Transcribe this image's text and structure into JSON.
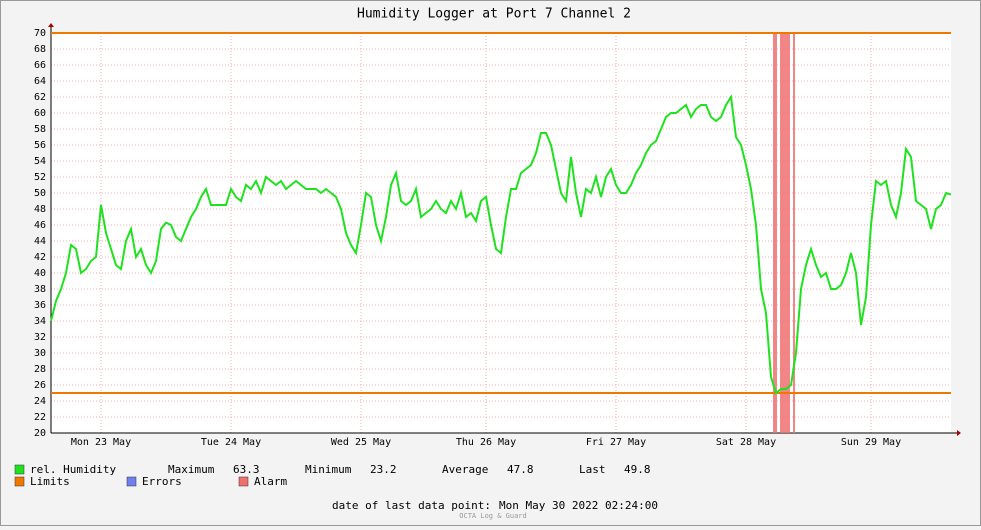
{
  "chart_data": {
    "type": "line",
    "title": "Humidity Logger at Port 7 Channel 2",
    "series": [
      {
        "name": "rel. Humidity",
        "color": "#1fe21f",
        "values": [
          34,
          36.5,
          38,
          40,
          43.5,
          43,
          40,
          40.5,
          41.5,
          42,
          48.5,
          45,
          43,
          41,
          40.5,
          44,
          45.5,
          42,
          43,
          41,
          40,
          41.5,
          45.5,
          46.3,
          46,
          44.5,
          44,
          45.5,
          47,
          48,
          49.5,
          50.5,
          48.5,
          48.5,
          48.5,
          48.5,
          50.5,
          49.5,
          49,
          51,
          50.5,
          51.5,
          50,
          52,
          51.5,
          51,
          51.5,
          50.5,
          51,
          51.5,
          51,
          50.5,
          50.5,
          50.5,
          50,
          50.5,
          50,
          49.5,
          48,
          45,
          43.5,
          42.5,
          46,
          50,
          49.5,
          46,
          44,
          47,
          51,
          52.5,
          49,
          48.5,
          49,
          50.5,
          47,
          47.5,
          48,
          49,
          48,
          47.5,
          49,
          48,
          50,
          47,
          47.5,
          46.5,
          49,
          49.5,
          46,
          43,
          42.5,
          47,
          50.5,
          50.5,
          52.5,
          53,
          53.5,
          55,
          57.5,
          57.5,
          56,
          53,
          50,
          49,
          54.5,
          50,
          47,
          50.5,
          50,
          52,
          49.5,
          52,
          53,
          51,
          50,
          50,
          51,
          52.5,
          53.5,
          55,
          56,
          56.5,
          58,
          59.5,
          60,
          60,
          60.5,
          61,
          59.5,
          60.5,
          61,
          61,
          59.5,
          59,
          59.5,
          61,
          62,
          57,
          56,
          53.5,
          50.5,
          46,
          38,
          35,
          27,
          25,
          25.5,
          25.5,
          26,
          30,
          38,
          41,
          43,
          41,
          39.5,
          40,
          38,
          38,
          38.5,
          40,
          42.5,
          40,
          33.5,
          37,
          46,
          51.5,
          51,
          51.5,
          48.5,
          47,
          50,
          55.5,
          54.5,
          49,
          48.5,
          48,
          45.5,
          48,
          48.5,
          50,
          49.8
        ]
      }
    ],
    "limits": {
      "name": "Limits",
      "color": "#f07800",
      "values": [
        70,
        25
      ]
    },
    "errors": {
      "name": "Errors",
      "color": "#6f7ff0"
    },
    "alarm": {
      "name": "Alarm",
      "color": "#f07070",
      "ranges": [
        [
          144.4,
          145.2
        ],
        [
          145.8,
          147.8
        ],
        [
          148.4,
          148.8
        ]
      ]
    },
    "xlim": [
      0,
      180
    ],
    "xticks": [
      {
        "value": 10,
        "label": "Mon 23 May"
      },
      {
        "value": 36,
        "label": "Tue 24 May"
      },
      {
        "value": 62,
        "label": "Wed 25 May"
      },
      {
        "value": 87,
        "label": "Thu 26 May"
      },
      {
        "value": 113,
        "label": "Fri 27 May"
      },
      {
        "value": 139,
        "label": "Sat 28 May"
      },
      {
        "value": 164,
        "label": "Sun 29 May"
      }
    ],
    "ylim": [
      20,
      70
    ],
    "yticks": [
      20,
      22,
      24,
      26,
      28,
      30,
      32,
      34,
      36,
      38,
      40,
      42,
      44,
      46,
      48,
      50,
      52,
      54,
      56,
      58,
      60,
      62,
      64,
      66,
      68,
      70
    ],
    "grid": true,
    "stats": [
      {
        "label": "Maximum",
        "value": 63.3
      },
      {
        "label": "Minimum",
        "value": 23.2
      },
      {
        "label": "Average",
        "value": 47.8
      },
      {
        "label": "Last",
        "value": 49.8
      }
    ],
    "footer_label": "date of last data point:",
    "footer_value": "Mon May 30 2022 02:24:00",
    "watermark": "OCTA Log & Guard"
  }
}
